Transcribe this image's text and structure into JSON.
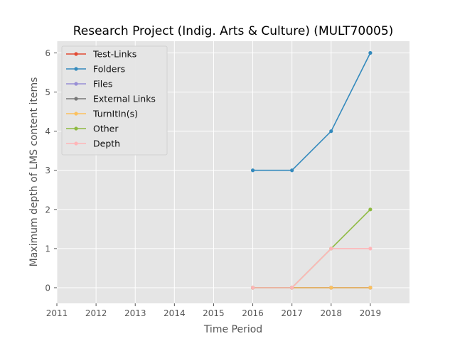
{
  "chart_data": {
    "type": "line",
    "title": "Research Project (Indig. Arts & Culture) (MULT70005)",
    "xlabel": "Time Period",
    "ylabel": "Maximum depth of LMS content items",
    "xlim": [
      2011,
      2020
    ],
    "ylim": [
      -0.4,
      6.3
    ],
    "x_ticks": [
      2011,
      2012,
      2013,
      2014,
      2015,
      2016,
      2017,
      2018,
      2019
    ],
    "y_ticks": [
      0,
      1,
      2,
      3,
      4,
      5,
      6
    ],
    "grid": true,
    "legend_position": "top-left",
    "x": [
      2016,
      2017,
      2018,
      2019
    ],
    "series": [
      {
        "name": "Test-Links",
        "color": "#E24A33",
        "values": [
          0,
          0,
          0,
          0
        ]
      },
      {
        "name": "Folders",
        "color": "#348ABD",
        "values": [
          3,
          3,
          4,
          6
        ]
      },
      {
        "name": "Files",
        "color": "#988ED5",
        "values": [
          0,
          0,
          0,
          0
        ]
      },
      {
        "name": "External Links",
        "color": "#777777",
        "values": [
          0,
          0,
          0,
          0
        ]
      },
      {
        "name": "TurnItIn(s)",
        "color": "#FBC15E",
        "values": [
          0,
          0,
          0,
          0
        ]
      },
      {
        "name": "Other",
        "color": "#8EBA42",
        "values": [
          0,
          0,
          1,
          2
        ]
      },
      {
        "name": "Depth",
        "color": "#FFB5B8",
        "values": [
          0,
          0,
          1,
          1
        ]
      }
    ]
  }
}
